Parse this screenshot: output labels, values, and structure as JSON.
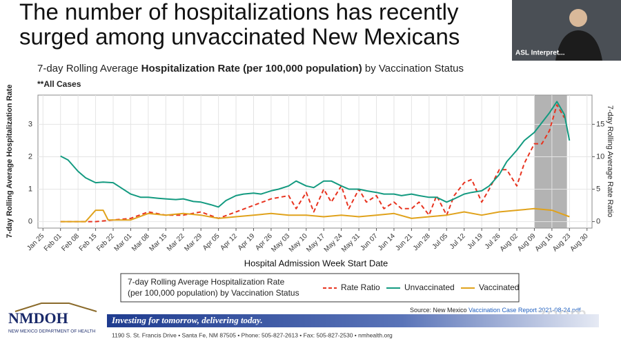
{
  "slide": {
    "title_lines": [
      "The number of hospitalizations has recently",
      "surged among unvaccinated New Mexicans"
    ],
    "interpreter_label": "ASL Interpret...",
    "source_prefix": "Source: New Mexico ",
    "source_link": "Vaccination Case Report 2021-08-24.pdf",
    "logo": "NMDOH",
    "logo_subtitle": "NEW MEXICO DEPARTMENT OF HEALTH",
    "banner": "Investing for tomorrow, delivering today.",
    "address": "1190 S. St. Francis Drive • Santa Fe, NM 87505 • Phone: 505-827-2613 • Fax: 505-827-2530 • nmhealth.org",
    "watermark": "zoom"
  },
  "chart_data": {
    "type": "line",
    "title_parts": [
      "7-day Rolling Average ",
      "Hospitalization Rate (per 100,000 population)",
      " by Vaccination Status"
    ],
    "subtitle": "**All Cases",
    "x_label": "Hospital Admission Week Start Date",
    "y_label": "7-day Rolling Average Hospitalization Rate",
    "y2_label": "7-day Rolling Average Rate Ratio",
    "xlim": [
      "Jan 23",
      "Sep 01"
    ],
    "xticks": [
      "Jan 25",
      "Feb 01",
      "Feb 08",
      "Feb 15",
      "Feb 22",
      "Mar 01",
      "Mar 08",
      "Mar 15",
      "Mar 22",
      "Mar 29",
      "Apr 05",
      "Apr 12",
      "Apr 19",
      "Apr 26",
      "May 03",
      "May 10",
      "May 17",
      "May 24",
      "May 31",
      "Jun 07",
      "Jun 14",
      "Jun 21",
      "Jun 28",
      "Jul 05",
      "Jul 12",
      "Jul 19",
      "Jul 26",
      "Aug 02",
      "Aug 09",
      "Aug 16",
      "Aug 23",
      "Aug 30"
    ],
    "ylim": [
      -0.2,
      3.9
    ],
    "yticks": [
      0,
      1,
      2,
      3
    ],
    "y2lim": [
      -1,
      19.5
    ],
    "y2ticks": [
      0,
      5,
      10,
      15
    ],
    "grid": true,
    "shade": [
      "Aug 09",
      "Aug 22"
    ],
    "legend_title": [
      "7-day Rolling Average Hospitalization Rate",
      "(per 100,000 population) by Vaccination Status"
    ],
    "series": [
      {
        "name": "Rate Ratio",
        "color": "#e8331f",
        "dash": true,
        "axis": "y2",
        "x": [
          "Feb 01",
          "Feb 15",
          "Mar 01",
          "Mar 08",
          "Mar 15",
          "Mar 22",
          "Mar 29",
          "Apr 05",
          "Apr 12",
          "Apr 19",
          "Apr 26",
          "May 03",
          "May 06",
          "May 10",
          "May 13",
          "May 17",
          "May 20",
          "May 24",
          "May 27",
          "May 31",
          "Jun 03",
          "Jun 07",
          "Jun 10",
          "Jun 14",
          "Jun 17",
          "Jun 21",
          "Jun 24",
          "Jun 28",
          "Jul 01",
          "Jul 05",
          "Jul 08",
          "Jul 12",
          "Jul 15",
          "Jul 19",
          "Jul 22",
          "Jul 26",
          "Jul 29",
          "Aug 02",
          "Aug 05",
          "Aug 09",
          "Aug 12",
          "Aug 15",
          "Aug 18",
          "Aug 21"
        ],
        "values": [
          0,
          0,
          0.5,
          1.5,
          1,
          1,
          1.5,
          0.5,
          1.5,
          2.5,
          3.5,
          4,
          2,
          4.5,
          1.5,
          5,
          3,
          5.5,
          2,
          5,
          3,
          4,
          2,
          3,
          2,
          2,
          3,
          1,
          4,
          1,
          4,
          6,
          6.5,
          3,
          5,
          8,
          8,
          5.5,
          9,
          12,
          12,
          14,
          18,
          16
        ]
      },
      {
        "name": "Unvaccinated",
        "color": "#139a80",
        "axis": "y",
        "x": [
          "Feb 01",
          "Feb 04",
          "Feb 08",
          "Feb 11",
          "Feb 15",
          "Feb 18",
          "Feb 22",
          "Feb 25",
          "Mar 01",
          "Mar 05",
          "Mar 08",
          "Mar 12",
          "Mar 15",
          "Mar 19",
          "Mar 22",
          "Mar 26",
          "Mar 29",
          "Apr 02",
          "Apr 05",
          "Apr 08",
          "Apr 12",
          "Apr 15",
          "Apr 19",
          "Apr 22",
          "Apr 26",
          "Apr 29",
          "May 03",
          "May 06",
          "May 10",
          "May 13",
          "May 17",
          "May 20",
          "May 24",
          "May 27",
          "May 31",
          "Jun 03",
          "Jun 07",
          "Jun 10",
          "Jun 14",
          "Jun 17",
          "Jun 21",
          "Jun 24",
          "Jun 28",
          "Jul 01",
          "Jul 05",
          "Jul 08",
          "Jul 12",
          "Jul 15",
          "Jul 19",
          "Jul 22",
          "Jul 26",
          "Jul 29",
          "Aug 02",
          "Aug 05",
          "Aug 09",
          "Aug 12",
          "Aug 15",
          "Aug 18",
          "Aug 21",
          "Aug 23"
        ],
        "values": [
          2.02,
          1.9,
          1.55,
          1.35,
          1.2,
          1.22,
          1.2,
          1.05,
          0.85,
          0.75,
          0.75,
          0.72,
          0.7,
          0.68,
          0.7,
          0.62,
          0.6,
          0.52,
          0.45,
          0.65,
          0.8,
          0.85,
          0.88,
          0.85,
          0.95,
          1.0,
          1.1,
          1.25,
          1.1,
          1.05,
          1.25,
          1.25,
          1.1,
          1.0,
          1.0,
          0.95,
          0.9,
          0.85,
          0.85,
          0.8,
          0.85,
          0.8,
          0.75,
          0.75,
          0.6,
          0.7,
          0.85,
          0.9,
          0.95,
          1.1,
          1.45,
          1.85,
          2.2,
          2.5,
          2.75,
          3.05,
          3.35,
          3.7,
          3.3,
          2.5
        ]
      },
      {
        "name": "Vaccinated",
        "color": "#e0a21b",
        "axis": "y",
        "x": [
          "Feb 01",
          "Feb 11",
          "Feb 15",
          "Feb 18",
          "Feb 20",
          "Mar 01",
          "Mar 08",
          "Mar 15",
          "Mar 22",
          "Mar 29",
          "Apr 05",
          "Apr 12",
          "Apr 19",
          "Apr 26",
          "May 03",
          "May 10",
          "May 17",
          "May 24",
          "May 31",
          "Jun 07",
          "Jun 14",
          "Jun 21",
          "Jun 28",
          "Jul 05",
          "Jul 12",
          "Jul 19",
          "Jul 26",
          "Aug 02",
          "Aug 09",
          "Aug 16",
          "Aug 23"
        ],
        "values": [
          0,
          0,
          0.35,
          0.35,
          0.05,
          0.05,
          0.25,
          0.2,
          0.25,
          0.2,
          0.1,
          0.15,
          0.2,
          0.25,
          0.2,
          0.2,
          0.15,
          0.2,
          0.15,
          0.2,
          0.25,
          0.1,
          0.15,
          0.2,
          0.3,
          0.2,
          0.3,
          0.35,
          0.4,
          0.35,
          0.15
        ]
      }
    ]
  }
}
